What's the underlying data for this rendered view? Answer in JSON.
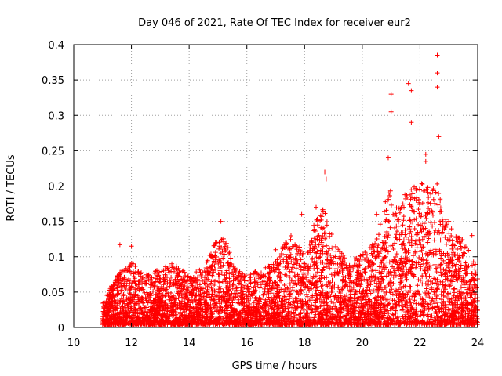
{
  "chart_data": {
    "type": "scatter",
    "title": "Day 046 of 2021, Rate Of TEC Index for receiver eur2",
    "xlabel": "GPS time / hours",
    "ylabel": "ROTI / TECUs",
    "xlim": [
      10,
      24
    ],
    "ylim": [
      0,
      0.4
    ],
    "xticks": [
      10,
      12,
      14,
      16,
      18,
      20,
      22,
      24
    ],
    "yticks": [
      0,
      0.05,
      0.1,
      0.15,
      0.2,
      0.25,
      0.3,
      0.35,
      0.4
    ],
    "xtick_labels": [
      "10",
      "12",
      "14",
      "16",
      "18",
      "20",
      "22",
      "24"
    ],
    "ytick_labels": [
      "0",
      "0.05",
      "0.1",
      "0.15",
      "0.2",
      "0.25",
      "0.3",
      "0.35",
      "0.4"
    ],
    "grid": true,
    "marker": "+",
    "color": "#ff0000",
    "x_range_observed": [
      11.0,
      24.0
    ],
    "envelope": {
      "note": "approximate upper envelope of the dense point cloud (hour, ROTI)",
      "x": [
        11.0,
        11.5,
        12.0,
        12.5,
        13.0,
        13.5,
        14.0,
        14.5,
        15.0,
        15.3,
        15.6,
        16.0,
        16.5,
        17.0,
        17.5,
        18.0,
        18.3,
        18.7,
        19.0,
        19.5,
        20.0,
        20.5,
        20.9,
        21.2,
        21.6,
        22.0,
        22.3,
        22.6,
        23.0,
        23.5,
        24.0
      ],
      "y": [
        0.03,
        0.07,
        0.09,
        0.07,
        0.08,
        0.085,
        0.07,
        0.08,
        0.13,
        0.12,
        0.08,
        0.07,
        0.08,
        0.09,
        0.13,
        0.1,
        0.14,
        0.17,
        0.12,
        0.09,
        0.1,
        0.12,
        0.2,
        0.17,
        0.19,
        0.2,
        0.2,
        0.2,
        0.14,
        0.12,
        0.08
      ]
    },
    "peaks": [
      {
        "x": 11.6,
        "y": 0.117
      },
      {
        "x": 12.0,
        "y": 0.115
      },
      {
        "x": 13.4,
        "y": 0.09
      },
      {
        "x": 15.1,
        "y": 0.15
      },
      {
        "x": 17.0,
        "y": 0.11
      },
      {
        "x": 17.9,
        "y": 0.16
      },
      {
        "x": 18.4,
        "y": 0.17
      },
      {
        "x": 18.7,
        "y": 0.22
      },
      {
        "x": 18.75,
        "y": 0.21
      },
      {
        "x": 20.5,
        "y": 0.16
      },
      {
        "x": 20.9,
        "y": 0.24
      },
      {
        "x": 21.0,
        "y": 0.33
      },
      {
        "x": 21.0,
        "y": 0.305
      },
      {
        "x": 21.6,
        "y": 0.345
      },
      {
        "x": 21.7,
        "y": 0.335
      },
      {
        "x": 21.7,
        "y": 0.29
      },
      {
        "x": 22.2,
        "y": 0.245
      },
      {
        "x": 22.2,
        "y": 0.235
      },
      {
        "x": 22.6,
        "y": 0.385
      },
      {
        "x": 22.6,
        "y": 0.36
      },
      {
        "x": 22.6,
        "y": 0.34
      },
      {
        "x": 22.65,
        "y": 0.27
      },
      {
        "x": 23.0,
        "y": 0.15
      },
      {
        "x": 23.8,
        "y": 0.13
      }
    ]
  }
}
